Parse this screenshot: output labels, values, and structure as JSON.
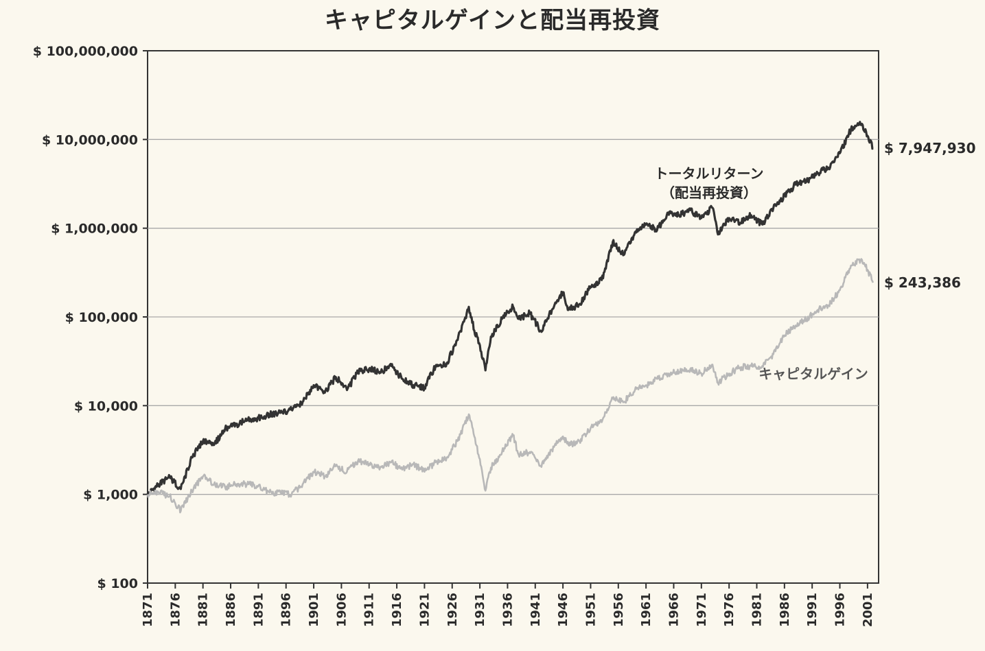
{
  "chart_data": {
    "type": "line",
    "title": "キャピタルゲインと配当再投資",
    "xlabel": "",
    "ylabel": "",
    "yscale": "log",
    "ylim": [
      100,
      100000000
    ],
    "xlim": [
      1871,
      2003
    ],
    "grid": "horizontal",
    "y_ticks": [
      {
        "value": 100,
        "label": "$ 100"
      },
      {
        "value": 1000,
        "label": "$ 1,000"
      },
      {
        "value": 10000,
        "label": "$ 10,000"
      },
      {
        "value": 100000,
        "label": "$ 100,000"
      },
      {
        "value": 1000000,
        "label": "$ 1,000,000"
      },
      {
        "value": 10000000,
        "label": "$ 10,000,000"
      },
      {
        "value": 100000000,
        "label": "$ 100,000,000"
      }
    ],
    "x_ticks": [
      "1871",
      "1876",
      "1881",
      "1886",
      "1891",
      "1896",
      "1901",
      "1906",
      "1911",
      "1916",
      "1921",
      "1926",
      "1931",
      "1936",
      "1941",
      "1946",
      "1951",
      "1956",
      "1961",
      "1966",
      "1971",
      "1976",
      "1981",
      "1986",
      "1991",
      "1996",
      "2001"
    ],
    "series": [
      {
        "name": "トータルリターン",
        "name_line2": "（配当再投資）",
        "color": "#333333",
        "end_label": "$ 7,947,930",
        "x": [
          1871,
          1873,
          1875,
          1877,
          1879,
          1881,
          1883,
          1885,
          1887,
          1889,
          1891,
          1893,
          1895,
          1897,
          1899,
          1901,
          1903,
          1905,
          1907,
          1909,
          1911,
          1913,
          1915,
          1917,
          1919,
          1921,
          1923,
          1925,
          1927,
          1929,
          1930,
          1931,
          1932,
          1933,
          1935,
          1937,
          1938,
          1940,
          1942,
          1944,
          1946,
          1947,
          1949,
          1951,
          1953,
          1955,
          1957,
          1959,
          1961,
          1963,
          1965,
          1967,
          1969,
          1971,
          1973,
          1974,
          1976,
          1978,
          1980,
          1982,
          1984,
          1986,
          1988,
          1990,
          1992,
          1994,
          1996,
          1998,
          2000,
          2001,
          2002
        ],
        "values": [
          1000,
          1300,
          1550,
          1150,
          2600,
          4000,
          3600,
          5500,
          6100,
          7000,
          7200,
          8000,
          8300,
          9000,
          11000,
          17000,
          14000,
          21000,
          15000,
          24000,
          26000,
          24000,
          28000,
          20000,
          17000,
          16000,
          28000,
          30000,
          55000,
          130000,
          70000,
          48000,
          25000,
          60000,
          95000,
          130000,
          95000,
          110000,
          70000,
          120000,
          190000,
          120000,
          140000,
          220000,
          260000,
          700000,
          500000,
          900000,
          1100000,
          950000,
          1500000,
          1400000,
          1600000,
          1300000,
          1700000,
          850000,
          1300000,
          1150000,
          1400000,
          1100000,
          1700000,
          2300000,
          3100000,
          3400000,
          4200000,
          4800000,
          7000000,
          13000000,
          15000000,
          11000000,
          7947930
        ]
      },
      {
        "name": "キャピタルゲイン",
        "color": "#b8b8b8",
        "end_label": "$ 243,386",
        "x": [
          1871,
          1873,
          1875,
          1877,
          1879,
          1881,
          1883,
          1885,
          1887,
          1889,
          1891,
          1893,
          1895,
          1897,
          1899,
          1901,
          1903,
          1905,
          1907,
          1909,
          1911,
          1913,
          1915,
          1917,
          1919,
          1921,
          1923,
          1925,
          1927,
          1929,
          1930,
          1931,
          1932,
          1933,
          1935,
          1937,
          1938,
          1940,
          1942,
          1944,
          1946,
          1947,
          1949,
          1951,
          1953,
          1955,
          1957,
          1959,
          1961,
          1963,
          1965,
          1967,
          1969,
          1971,
          1973,
          1974,
          1976,
          1978,
          1980,
          1982,
          1984,
          1986,
          1988,
          1990,
          1992,
          1994,
          1996,
          1998,
          2000,
          2001,
          2002
        ],
        "values": [
          1000,
          1050,
          950,
          650,
          1100,
          1600,
          1300,
          1200,
          1300,
          1300,
          1250,
          1050,
          1050,
          1000,
          1300,
          1800,
          1600,
          2100,
          1800,
          2400,
          2200,
          2000,
          2300,
          1900,
          2200,
          1800,
          2300,
          2600,
          4000,
          8000,
          4500,
          2500,
          1100,
          2000,
          3000,
          4600,
          2800,
          3000,
          2100,
          3200,
          4500,
          3600,
          4000,
          5600,
          6500,
          12000,
          11000,
          15000,
          17000,
          20000,
          23000,
          24000,
          26000,
          23000,
          29000,
          18000,
          23000,
          27000,
          28000,
          28000,
          38000,
          62000,
          80000,
          95000,
          120000,
          135000,
          200000,
          380000,
          440000,
          340000,
          243386
        ]
      }
    ]
  }
}
